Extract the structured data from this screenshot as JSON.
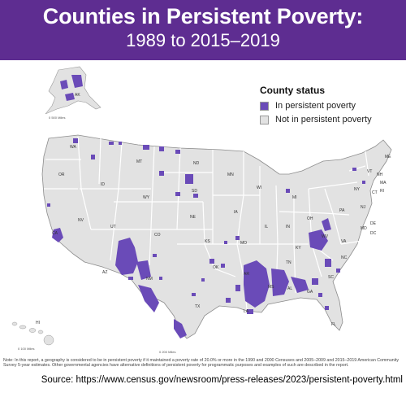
{
  "title_line1": "Counties in Persistent Poverty:",
  "title_line2": "1989 to 2015–2019",
  "legend": {
    "title": "County status",
    "items": [
      {
        "label": "In persistent poverty",
        "color": "#6a4bb8"
      },
      {
        "label": "Not in persistent poverty",
        "color": "#e2e2e2"
      }
    ]
  },
  "scale_labels": {
    "alaska": "0       500 Miles",
    "hawaii": "0     100 Miles",
    "conus": "0        200 Miles"
  },
  "state_labels": [
    "AK",
    "WA",
    "OR",
    "CA",
    "ID",
    "NV",
    "MT",
    "WY",
    "UT",
    "AZ",
    "CO",
    "NM",
    "ND",
    "SD",
    "NE",
    "KS",
    "OK",
    "TX",
    "MN",
    "IA",
    "MO",
    "AR",
    "LA",
    "WI",
    "IL",
    "MS",
    "MI",
    "IN",
    "KY",
    "TN",
    "AL",
    "OH",
    "WV",
    "GA",
    "FL",
    "PA",
    "VA",
    "NC",
    "SC",
    "NY",
    "ME",
    "VT",
    "NH",
    "MA",
    "CT",
    "RI",
    "NJ",
    "DE",
    "MD",
    "DC",
    "HI"
  ],
  "note": "Note: In this report, a geography is considered to be in persistent poverty if it maintained a poverty rate of 20.0% or more in the 1990 and 2000 Censuses and 2005–2009 and 2015–2019 American Community Survey 5-year estimates. Other governmental agencies have alternative definitions of persistent poverty for programmatic purposes and examples of such are described in the report.",
  "source": "Source: https://www.census.gov/newsroom/press-releases/2023/persistent-poverty.html"
}
